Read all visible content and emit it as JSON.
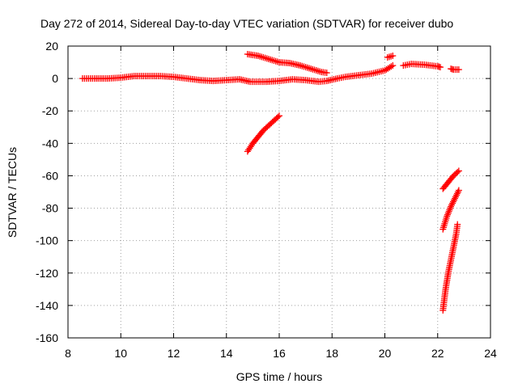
{
  "chart_data": {
    "type": "scatter",
    "title": "Day 272 of 2014, Sidereal Day-to-day VTEC variation (SDTVAR) for receiver dubo",
    "xlabel": "GPS time / hours",
    "ylabel": "SDTVAR / TECUs",
    "xlim": [
      8,
      24
    ],
    "ylim": [
      -160,
      20
    ],
    "xticks": [
      8,
      10,
      12,
      14,
      16,
      18,
      20,
      22,
      24
    ],
    "yticks": [
      -160,
      -140,
      -120,
      -100,
      -80,
      -60,
      -40,
      -20,
      0,
      20
    ],
    "grid": true,
    "marker": "plus",
    "color": "#ff0000",
    "tracks": [
      {
        "x": [
          8.55,
          9.0,
          9.5,
          10.0,
          10.5,
          11.0,
          11.5,
          12.0,
          12.5,
          13.0,
          13.5,
          14.0,
          14.5,
          14.9,
          15.5,
          16.0,
          16.5,
          17.0,
          17.5,
          17.8,
          18.2,
          18.5,
          19.0,
          19.5,
          20.0,
          20.3
        ],
        "y": [
          0,
          0,
          0,
          0.5,
          1.5,
          1.5,
          1.5,
          1,
          0,
          -1,
          -1.5,
          -1,
          -0.5,
          -2,
          -2,
          -1.5,
          -0.5,
          -1,
          -2,
          -1.5,
          0,
          1,
          2,
          3,
          5,
          8
        ]
      },
      {
        "x": [
          14.8,
          15.2,
          15.6,
          16.0,
          16.4,
          16.8,
          17.2,
          17.6,
          17.8
        ],
        "y": [
          15,
          14,
          12,
          10,
          9.5,
          8,
          6,
          4,
          3.5
        ]
      },
      {
        "x": [
          14.8,
          15.0,
          15.2,
          15.4,
          15.6,
          15.8,
          16.0
        ],
        "y": [
          -45,
          -40,
          -36,
          -32,
          -29,
          -26,
          -23
        ]
      },
      {
        "x": [
          20.1,
          20.3
        ],
        "y": [
          13,
          14
        ]
      },
      {
        "x": [
          20.7,
          21.0,
          21.5,
          22.0,
          22.1
        ],
        "y": [
          8,
          9,
          8.5,
          7.5,
          7
        ]
      },
      {
        "x": [
          22.5,
          22.6,
          22.8
        ],
        "y": [
          6,
          5.5,
          5.5
        ]
      },
      {
        "x": [
          22.2,
          22.4,
          22.6,
          22.8
        ],
        "y": [
          -68,
          -64,
          -60,
          -57
        ]
      },
      {
        "x": [
          22.2,
          22.35,
          22.5,
          22.65,
          22.8
        ],
        "y": [
          -93,
          -85,
          -79,
          -74,
          -69
        ]
      },
      {
        "x": [
          22.2,
          22.3,
          22.4,
          22.5,
          22.6,
          22.7,
          22.75
        ],
        "y": [
          -143,
          -130,
          -120,
          -112,
          -104,
          -96,
          -90
        ]
      }
    ]
  }
}
